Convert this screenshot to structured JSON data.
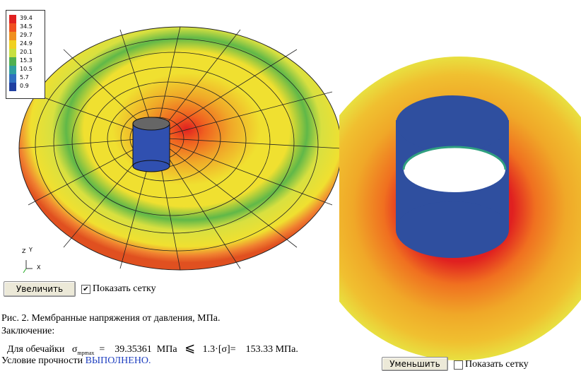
{
  "legend": {
    "labels": [
      "39.4",
      "34.5",
      "29.7",
      "24.9",
      "20.1",
      "15.3",
      "10.5",
      "5.7",
      "0.9"
    ]
  },
  "axes": {
    "z": "Z",
    "y": "Y",
    "x": "X"
  },
  "buttons": {
    "zoom_in": "Увеличить",
    "zoom_out": "Уменьшить"
  },
  "checkboxes": {
    "show_grid_left": "Показать сетку",
    "show_grid_right": "Показать сетку"
  },
  "caption": "Рис. 2. Мембранные напряжения от давления, МПа.",
  "conclusion_label": "Заключение:",
  "formula": {
    "prefix": "Для обечайки",
    "symbol": "σ",
    "subscript": "mpmax",
    "equals": "=",
    "value": "39.35361",
    "unit": "МПа",
    "relation": "⩽",
    "allowable": "1.3·[σ]=",
    "limit": "153.33",
    "limit_unit": "МПа."
  },
  "status": {
    "prefix": "Условие прочности",
    "result": "ВЫПОЛНЕНО."
  }
}
